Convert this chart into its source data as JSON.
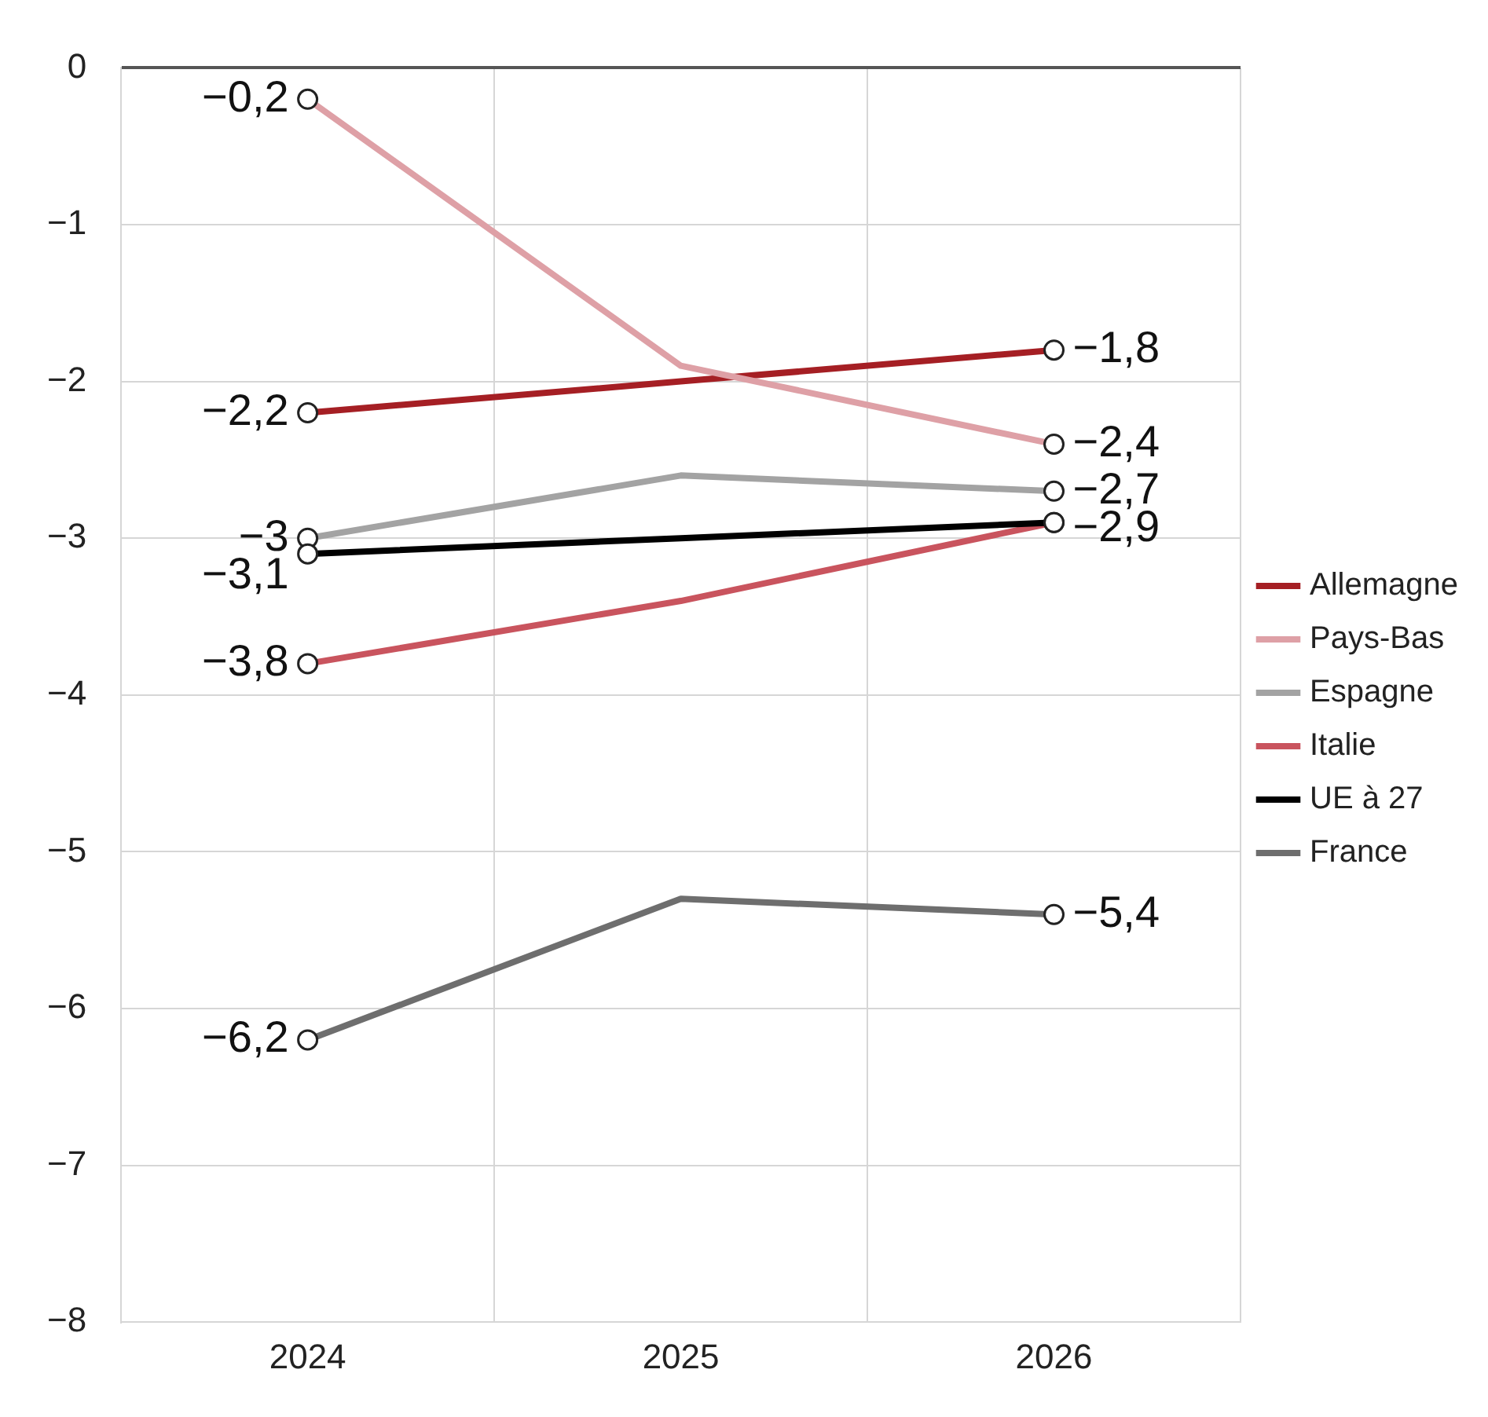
{
  "chart_data": {
    "type": "line",
    "categories": [
      "2024",
      "2025",
      "2026"
    ],
    "series": [
      {
        "name": "Allemagne",
        "color": "#a51f24",
        "values": [
          -2.2,
          -2.0,
          -1.8
        ],
        "value_labels": [
          "−2,2",
          null,
          "−1,8"
        ]
      },
      {
        "name": "Pays-Bas",
        "color": "#dea0a6",
        "values": [
          -0.2,
          -1.9,
          -2.4
        ],
        "value_labels": [
          "−0,2",
          null,
          "−2,4"
        ]
      },
      {
        "name": "Espagne",
        "color": "#a3a3a3",
        "values": [
          -3.0,
          -2.6,
          -2.7
        ],
        "value_labels": [
          "−3",
          null,
          "−2,7"
        ]
      },
      {
        "name": "Italie",
        "color": "#c9545e",
        "values": [
          -3.8,
          -3.4,
          -2.9
        ],
        "value_labels": [
          "−3,8",
          null,
          null
        ]
      },
      {
        "name": "UE à 27",
        "color": "#000000",
        "values": [
          -3.1,
          -3.0,
          -2.9
        ],
        "value_labels": [
          "−3,1",
          null,
          "−2,9"
        ]
      },
      {
        "name": "France",
        "color": "#6e6e6e",
        "values": [
          -6.2,
          -5.3,
          -5.4
        ],
        "value_labels": [
          "−6,2",
          null,
          "−5,4"
        ]
      }
    ],
    "ylim": [
      -8,
      0
    ],
    "yticks": [
      0,
      {
        "value": -1,
        "label": "−1"
      },
      {
        "value": -2,
        "label": "−2"
      },
      {
        "value": -3,
        "label": "−3"
      },
      {
        "value": -4,
        "label": "−4"
      },
      {
        "value": -5,
        "label": "−5"
      },
      {
        "value": -6,
        "label": "−6"
      },
      {
        "value": -7,
        "label": "−7"
      },
      {
        "value": -8,
        "label": "−8"
      }
    ],
    "grid": true,
    "legend": "right",
    "marker": "circle",
    "line_style": "solid"
  }
}
